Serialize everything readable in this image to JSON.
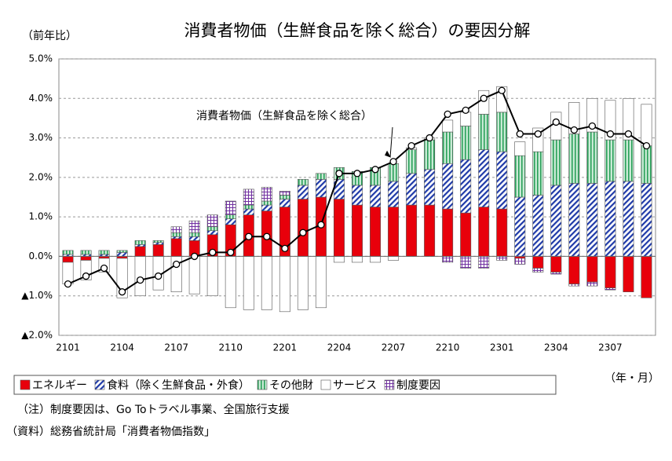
{
  "chart_data": {
    "type": "bar",
    "stacked": true,
    "title": "消費者物価（生鮮食品を除く総合）の要因分解",
    "y_label": "（前年比）",
    "x_label": "（年・月）",
    "categories": [
      "2101",
      null,
      null,
      "2104",
      null,
      null,
      "2107",
      null,
      null,
      "2110",
      null,
      null,
      "2201",
      null,
      null,
      "2204",
      null,
      null,
      "2207",
      null,
      null,
      "2210",
      null,
      null,
      "2301",
      null,
      null,
      "2304",
      null,
      null,
      "2307",
      null,
      null
    ],
    "series": [
      {
        "name": "エネルギー",
        "color": "#e8000b",
        "pattern": "solid",
        "values": [
          -0.15,
          -0.1,
          -0.05,
          -0.05,
          0.25,
          0.3,
          0.45,
          0.4,
          0.55,
          0.8,
          1.05,
          1.15,
          1.25,
          1.45,
          1.5,
          1.45,
          1.3,
          1.25,
          1.25,
          1.3,
          1.3,
          1.2,
          1.1,
          1.25,
          1.2,
          -0.05,
          -0.3,
          -0.4,
          -0.7,
          -0.65,
          -0.8,
          -0.9,
          -1.05
        ]
      },
      {
        "name": "食料（除く生鮮食品・外食）",
        "color": "#1f3aa8",
        "pattern": "diagonal",
        "values": [
          0.05,
          0.05,
          0.05,
          0.1,
          0.05,
          0.05,
          0.05,
          0.1,
          0.1,
          0.15,
          0.15,
          0.15,
          0.2,
          0.35,
          0.45,
          0.5,
          0.5,
          0.55,
          0.65,
          0.8,
          0.9,
          1.15,
          1.35,
          1.45,
          1.45,
          1.5,
          1.55,
          1.8,
          1.85,
          1.85,
          1.9,
          1.9,
          1.85
        ]
      },
      {
        "name": "その他財",
        "color": "#2aa05a",
        "pattern": "vertical",
        "values": [
          0.1,
          0.1,
          0.1,
          0.05,
          0.1,
          0.05,
          0.1,
          0.1,
          0.1,
          0.1,
          0.1,
          0.1,
          0.1,
          0.15,
          0.15,
          0.3,
          0.35,
          0.45,
          0.45,
          0.6,
          0.75,
          0.8,
          0.85,
          0.9,
          1.0,
          1.05,
          1.1,
          1.15,
          1.25,
          1.3,
          1.05,
          1.05,
          0.95
        ]
      },
      {
        "name": "サービス",
        "color": "#ffffff",
        "pattern": "none",
        "values": [
          -0.55,
          -0.5,
          -0.35,
          -1.0,
          -1.0,
          -0.85,
          -0.9,
          -0.95,
          -1.0,
          -1.3,
          -1.35,
          -1.35,
          -1.4,
          -1.35,
          -1.3,
          -0.15,
          -0.15,
          -0.15,
          -0.1,
          0.05,
          0.05,
          0.3,
          0.35,
          0.6,
          0.65,
          0.35,
          0.6,
          0.7,
          0.8,
          0.85,
          1.0,
          1.05,
          1.05
        ]
      },
      {
        "name": "制度要因",
        "color": "#7030a0",
        "pattern": "grid",
        "values": [
          0,
          0,
          0,
          0,
          0,
          0,
          0.15,
          0.3,
          0.3,
          0.35,
          0.4,
          0.35,
          0.1,
          0,
          0,
          0,
          0,
          0,
          0,
          0,
          0,
          -0.15,
          -0.3,
          -0.3,
          -0.1,
          -0.15,
          -0.1,
          -0.05,
          -0.05,
          -0.1,
          -0.05,
          0,
          0
        ]
      }
    ],
    "line": {
      "name": "消費者物価（生鮮食品を除く総合）",
      "color": "#000000",
      "values": [
        -0.7,
        -0.5,
        -0.3,
        -0.9,
        -0.6,
        -0.5,
        -0.2,
        0.0,
        0.1,
        0.1,
        0.5,
        0.5,
        0.2,
        0.6,
        0.8,
        2.1,
        2.1,
        2.2,
        2.4,
        2.8,
        3.0,
        3.6,
        3.7,
        4.0,
        4.2,
        3.1,
        3.1,
        3.4,
        3.2,
        3.3,
        3.1,
        3.1,
        2.8
      ]
    },
    "ylim": [
      -2.0,
      5.0
    ],
    "yticks": [
      {
        "value": -2.0,
        "label": "▲2.0%"
      },
      {
        "value": -1.0,
        "label": "▲1.0%"
      },
      {
        "value": 0.0,
        "label": "0.0%"
      },
      {
        "value": 1.0,
        "label": "1.0%"
      },
      {
        "value": 2.0,
        "label": "2.0%"
      },
      {
        "value": 3.0,
        "label": "3.0%"
      },
      {
        "value": 4.0,
        "label": "4.0%"
      },
      {
        "value": 5.0,
        "label": "5.0%"
      }
    ],
    "grid": true,
    "notes": [
      "（注）制度要因は、Go Toトラベル事業、全国旅行支援",
      "（資料）総務省統計局「消費者物価指数」"
    ]
  }
}
